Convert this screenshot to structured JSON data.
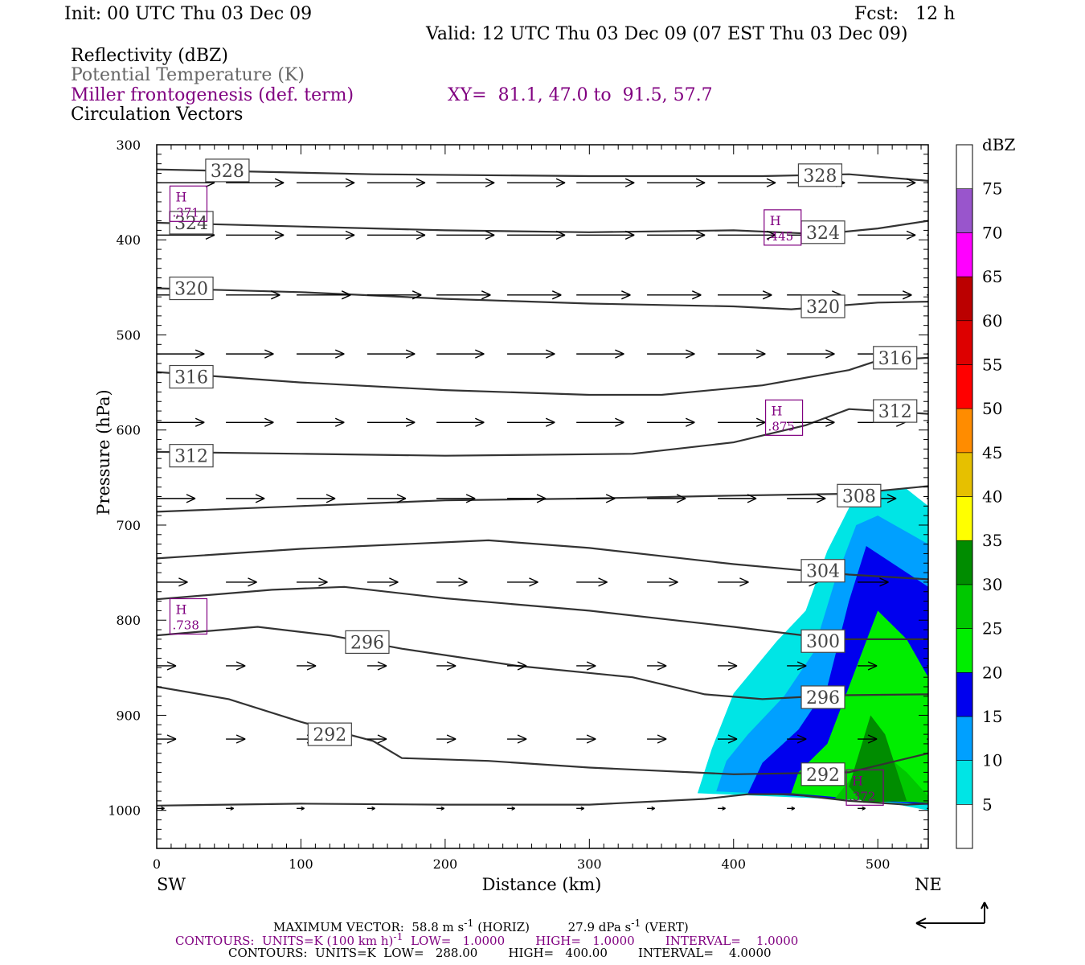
{
  "header": {
    "init": "Init: 00 UTC Thu 03 Dec 09",
    "fcst": "Fcst:   12 h",
    "valid": "Valid: 12 UTC Thu 03 Dec 09 (07 EST Thu 03 Dec 09)",
    "line1": "Reflectivity (dBZ)",
    "line2": "Potential Temperature (K)",
    "line3": "Miller frontogenesis (def. term)",
    "xy": "XY=  81.1, 47.0 to  91.5, 57.7",
    "line4": "Circulation Vectors"
  },
  "footer": {
    "max_vector_label": "MAXIMUM VECTOR:",
    "max_horiz": "58.8 m s",
    "max_horiz_sup": "-1",
    "max_horiz_tail": " (HORIZ)",
    "max_vert": "27.9 dPa s",
    "max_vert_sup": "-1",
    "max_vert_tail": " (VERT)",
    "contours1_a": "CONTOURS:  UNITS=K (100 km h)",
    "contours1_sup": "-1",
    "contours1_b": "  LOW=   1.0000        HIGH=   1.0000        INTERVAL=    1.0000",
    "contours2": "CONTOURS:  UNITS=K  LOW=   288.00        HIGH=   400.00        INTERVAL=    4.0000"
  },
  "colors": {
    "ref_5": "#00e5e5",
    "ref_10": "#00a0ff",
    "ref_15": "#0000ee",
    "ref_20": "#00ee00",
    "ref_25": "#00c800",
    "ref_30": "#008c00",
    "theta_line": "#333333",
    "frontogenesis": "#800080"
  },
  "chart_data": {
    "type": "cross-section",
    "xlabel": "Distance (km)",
    "ylabel": "Pressure (hPa)",
    "xlim": [
      0,
      535
    ],
    "ylim": [
      1040,
      300
    ],
    "x_ticks": [
      0,
      100,
      200,
      300,
      400,
      500
    ],
    "y_ticks": [
      300,
      400,
      500,
      600,
      700,
      800,
      900,
      1000
    ],
    "left_end_label": "SW",
    "right_end_label": "NE",
    "colorbar": {
      "title": "dBZ",
      "levels": [
        5,
        10,
        15,
        20,
        25,
        30,
        35,
        40,
        45,
        50,
        55,
        60,
        65,
        70,
        75
      ],
      "colors": [
        "#ffffff",
        "#00e5e5",
        "#00a0ff",
        "#0000ee",
        "#00ee00",
        "#00c800",
        "#008c00",
        "#ffff00",
        "#e6c000",
        "#ff8c00",
        "#ff0000",
        "#dd0000",
        "#bb0000",
        "#ff00ff",
        "#9955cc",
        "#ffffff"
      ]
    },
    "theta_contours": [
      {
        "value": 328,
        "label": "328",
        "points": [
          [
            0,
            326
          ],
          [
            60,
            328
          ],
          [
            150,
            331
          ],
          [
            300,
            333
          ],
          [
            420,
            333
          ],
          [
            480,
            331
          ],
          [
            535,
            338
          ]
        ]
      },
      {
        "value": 324,
        "label": "324",
        "points": [
          [
            0,
            382
          ],
          [
            100,
            386
          ],
          [
            200,
            390
          ],
          [
            300,
            392
          ],
          [
            400,
            390
          ],
          [
            460,
            394
          ],
          [
            500,
            388
          ],
          [
            535,
            380
          ]
        ]
      },
      {
        "value": 320,
        "label": "320",
        "points": [
          [
            0,
            451
          ],
          [
            100,
            455
          ],
          [
            200,
            462
          ],
          [
            300,
            467
          ],
          [
            400,
            470
          ],
          [
            440,
            473
          ],
          [
            500,
            466
          ],
          [
            535,
            465
          ]
        ]
      },
      {
        "value": 316,
        "label": "316",
        "points": [
          [
            0,
            539
          ],
          [
            100,
            550
          ],
          [
            200,
            558
          ],
          [
            300,
            563
          ],
          [
            350,
            563
          ],
          [
            420,
            553
          ],
          [
            480,
            537
          ],
          [
            500,
            527
          ],
          [
            535,
            524
          ]
        ]
      },
      {
        "value": 312,
        "label": "312",
        "points": [
          [
            0,
            623
          ],
          [
            100,
            625
          ],
          [
            200,
            627
          ],
          [
            330,
            625
          ],
          [
            400,
            613
          ],
          [
            450,
            595
          ],
          [
            480,
            578
          ],
          [
            535,
            583
          ]
        ]
      },
      {
        "value": 308,
        "label": "308",
        "points": [
          [
            0,
            686
          ],
          [
            100,
            680
          ],
          [
            200,
            674
          ],
          [
            300,
            672
          ],
          [
            400,
            669
          ],
          [
            480,
            667
          ],
          [
            535,
            659
          ]
        ]
      },
      {
        "value": 304,
        "label": "304",
        "points": [
          [
            0,
            735
          ],
          [
            100,
            725
          ],
          [
            230,
            716
          ],
          [
            300,
            724
          ],
          [
            400,
            741
          ],
          [
            480,
            752
          ],
          [
            535,
            757
          ]
        ]
      },
      {
        "value": 300,
        "label": "300",
        "points": [
          [
            0,
            778
          ],
          [
            80,
            768
          ],
          [
            130,
            765
          ],
          [
            200,
            777
          ],
          [
            300,
            790
          ],
          [
            400,
            807
          ],
          [
            470,
            820
          ],
          [
            535,
            820
          ]
        ]
      },
      {
        "value": 296,
        "label": "296",
        "points": [
          [
            0,
            816
          ],
          [
            70,
            807
          ],
          [
            120,
            816
          ],
          [
            170,
            830
          ],
          [
            250,
            848
          ],
          [
            330,
            860
          ],
          [
            380,
            878
          ],
          [
            420,
            883
          ],
          [
            470,
            879
          ],
          [
            535,
            878
          ]
        ]
      },
      {
        "value": 292,
        "label": "292",
        "points": [
          [
            0,
            870
          ],
          [
            50,
            883
          ],
          [
            100,
            907
          ],
          [
            150,
            927
          ],
          [
            170,
            945
          ],
          [
            230,
            948
          ],
          [
            300,
            955
          ],
          [
            400,
            962
          ],
          [
            480,
            960
          ],
          [
            535,
            940
          ]
        ]
      },
      {
        "value": 288,
        "label": "",
        "points": [
          [
            0,
            995
          ],
          [
            100,
            993
          ],
          [
            200,
            994
          ],
          [
            300,
            994
          ],
          [
            380,
            988
          ],
          [
            410,
            983
          ],
          [
            440,
            983
          ],
          [
            480,
            990
          ],
          [
            520,
            994
          ],
          [
            535,
            993
          ]
        ]
      }
    ],
    "theta_labels": [
      {
        "label": "328",
        "x": 49,
        "p": 327
      },
      {
        "label": "328",
        "x": 460,
        "p": 332
      },
      {
        "label": "324",
        "x": 24,
        "p": 382
      },
      {
        "label": "324",
        "x": 462,
        "p": 392
      },
      {
        "label": "320",
        "x": 24,
        "p": 451
      },
      {
        "label": "320",
        "x": 462,
        "p": 470
      },
      {
        "label": "316",
        "x": 24,
        "p": 544
      },
      {
        "label": "316",
        "x": 512,
        "p": 524
      },
      {
        "label": "312",
        "x": 24,
        "p": 627
      },
      {
        "label": "312",
        "x": 512,
        "p": 580
      },
      {
        "label": "308",
        "x": 487,
        "p": 669
      },
      {
        "label": "304",
        "x": 462,
        "p": 748
      },
      {
        "label": "300",
        "x": 462,
        "p": 822
      },
      {
        "label": "296",
        "x": 146,
        "p": 823
      },
      {
        "label": "296",
        "x": 462,
        "p": 881
      },
      {
        "label": "292",
        "x": 120,
        "p": 920
      },
      {
        "label": "292",
        "x": 462,
        "p": 962
      }
    ],
    "frontogenesis_highs": [
      {
        "label": "H",
        "value": ".371",
        "x": 22,
        "p": 362
      },
      {
        "label": "H",
        "value": ".445",
        "x": 434,
        "p": 387
      },
      {
        "label": "H",
        "value": ".875",
        "x": 435,
        "p": 587
      },
      {
        "label": "H",
        "value": ".738",
        "x": 22,
        "p": 796
      },
      {
        "label": "H",
        "value": ".372",
        "x": 491,
        "p": 976
      }
    ],
    "reflectivity_polygons": [
      {
        "level": 5,
        "points": [
          [
            375,
            982
          ],
          [
            385,
            935
          ],
          [
            400,
            877
          ],
          [
            430,
            822
          ],
          [
            450,
            790
          ],
          [
            465,
            727
          ],
          [
            482,
            676
          ],
          [
            500,
            664
          ],
          [
            520,
            662
          ],
          [
            535,
            680
          ],
          [
            535,
            1000
          ],
          [
            500,
            990
          ]
        ]
      },
      {
        "level": 10,
        "points": [
          [
            388,
            980
          ],
          [
            395,
            948
          ],
          [
            410,
            920
          ],
          [
            435,
            880
          ],
          [
            455,
            835
          ],
          [
            470,
            760
          ],
          [
            485,
            700
          ],
          [
            500,
            690
          ],
          [
            535,
            720
          ],
          [
            535,
            995
          ],
          [
            500,
            988
          ]
        ]
      },
      {
        "level": 15,
        "points": [
          [
            410,
            982
          ],
          [
            420,
            950
          ],
          [
            445,
            915
          ],
          [
            465,
            870
          ],
          [
            480,
            780
          ],
          [
            492,
            722
          ],
          [
            535,
            765
          ],
          [
            535,
            994
          ],
          [
            500,
            990
          ]
        ]
      },
      {
        "level": 20,
        "points": [
          [
            440,
            982
          ],
          [
            445,
            960
          ],
          [
            465,
            930
          ],
          [
            485,
            850
          ],
          [
            500,
            790
          ],
          [
            520,
            820
          ],
          [
            535,
            860
          ],
          [
            535,
            992
          ],
          [
            500,
            990
          ]
        ]
      },
      {
        "level": 25,
        "points": [
          [
            470,
            988
          ],
          [
            485,
            960
          ],
          [
            500,
            935
          ],
          [
            520,
            960
          ],
          [
            535,
            985
          ],
          [
            535,
            992
          ]
        ]
      },
      {
        "level": 30,
        "points": [
          [
            480,
            975
          ],
          [
            495,
            900
          ],
          [
            505,
            920
          ],
          [
            520,
            990
          ],
          [
            490,
            992
          ]
        ]
      }
    ],
    "vector_rows": [
      {
        "p": 340,
        "u": 45,
        "w": 0
      },
      {
        "p": 395,
        "u": 45,
        "w": 0
      },
      {
        "p": 458,
        "u": 42,
        "w": 0
      },
      {
        "p": 520,
        "u": 37,
        "w": 0
      },
      {
        "p": 592,
        "u": 37,
        "w": 0
      },
      {
        "p": 672,
        "u": 30,
        "w": 0
      },
      {
        "p": 760,
        "u": 24,
        "w": 0
      },
      {
        "p": 848,
        "u": 15,
        "w": 0
      },
      {
        "p": 925,
        "u": 15,
        "w": 0
      },
      {
        "p": 998,
        "u": 6,
        "w": 0
      }
    ],
    "vector_x": [
      0,
      48,
      97,
      146,
      194,
      243,
      291,
      340,
      389,
      437,
      486,
      534
    ]
  }
}
